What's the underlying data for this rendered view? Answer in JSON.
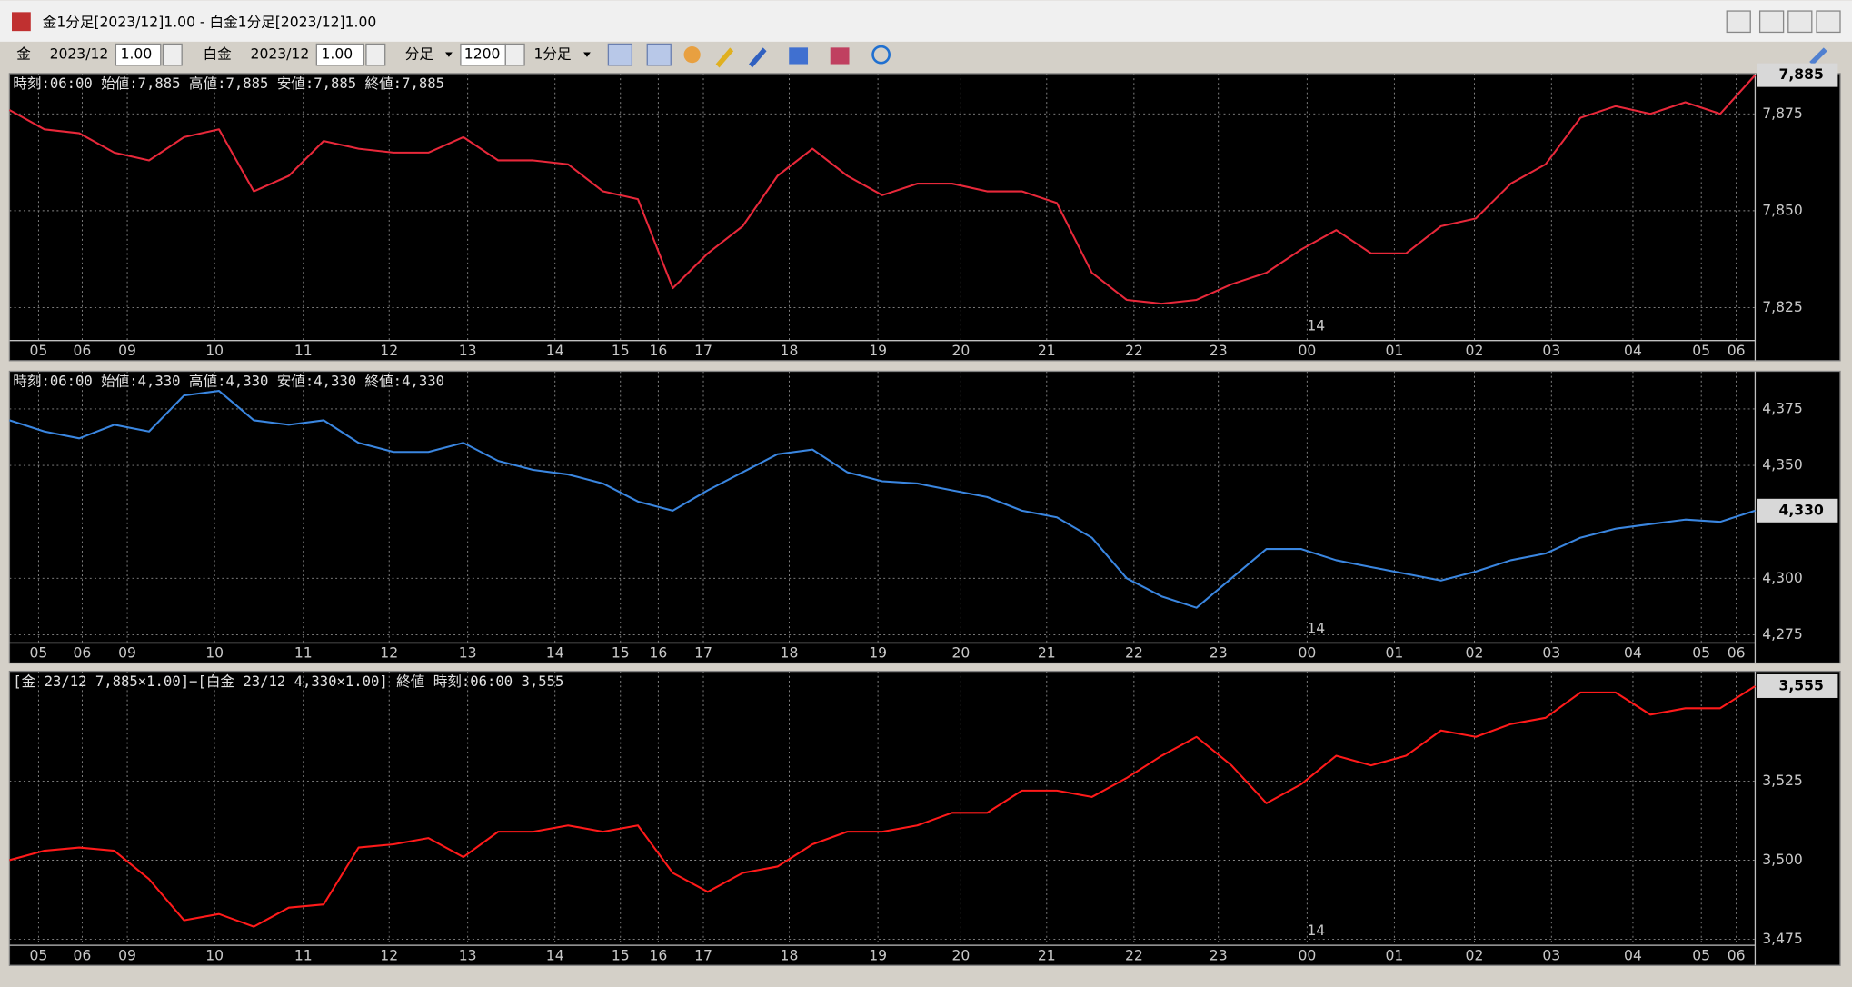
{
  "window": {
    "title": "金1分足[2023/12]1.00 - 白金1分足[2023/12]1.00"
  },
  "toolbar": {
    "item1": "金",
    "month1": "2023/12",
    "mult1": "1.00",
    "item2": "白金",
    "month2": "2023/12",
    "mult2": "1.00",
    "period": "分足",
    "count": "1200",
    "interval": "1分足"
  },
  "chart_data": [
    {
      "type": "line",
      "header": "時刻:06:00 始値:7,885 高値:7,885 安値:7,885 終値:7,885",
      "color": "#e8283a",
      "x": [
        0,
        24,
        48,
        72,
        96,
        120,
        144,
        168,
        192,
        216,
        240,
        264,
        288,
        312,
        336,
        360,
        384,
        408,
        432,
        456,
        480,
        504,
        528,
        552,
        576,
        600,
        624,
        648,
        672,
        696,
        720,
        744,
        768,
        792,
        816,
        840,
        864,
        888,
        912,
        936,
        960,
        984,
        1008,
        1032,
        1056,
        1080,
        1104,
        1128,
        1152,
        1176,
        1200
      ],
      "values": [
        7876,
        7871,
        7870,
        7865,
        7863,
        7869,
        7871,
        7855,
        7859,
        7868,
        7866,
        7865,
        7865,
        7869,
        7863,
        7863,
        7862,
        7855,
        7853,
        7830,
        7839,
        7846,
        7859,
        7866,
        7859,
        7854,
        7857,
        7857,
        7855,
        7855,
        7852,
        7834,
        7827,
        7826,
        7827,
        7831,
        7834,
        7840,
        7845,
        7839,
        7839,
        7846,
        7848,
        7857,
        7862,
        7874,
        7877,
        7875,
        7878,
        7875,
        7885
      ],
      "xlim": [
        0,
        1200
      ],
      "xticks": [
        {
          "value": 20,
          "label": "05"
        },
        {
          "value": 50,
          "label": "06"
        },
        {
          "value": 81,
          "label": "09"
        },
        {
          "value": 141,
          "label": "10"
        },
        {
          "value": 202,
          "label": "11"
        },
        {
          "value": 261,
          "label": "12"
        },
        {
          "value": 315,
          "label": "13"
        },
        {
          "value": 375,
          "label": "14"
        },
        {
          "value": 420,
          "label": "15"
        },
        {
          "value": 446,
          "label": "16"
        },
        {
          "value": 477,
          "label": "17"
        },
        {
          "value": 536,
          "label": "18"
        },
        {
          "value": 597,
          "label": "19"
        },
        {
          "value": 654,
          "label": "20"
        },
        {
          "value": 713,
          "label": "21"
        },
        {
          "value": 773,
          "label": "22"
        },
        {
          "value": 831,
          "label": "23"
        },
        {
          "value": 892,
          "label": "00"
        },
        {
          "value": 952,
          "label": "01"
        },
        {
          "value": 1007,
          "label": "02"
        },
        {
          "value": 1060,
          "label": "03"
        },
        {
          "value": 1116,
          "label": "04"
        },
        {
          "value": 1163,
          "label": "05"
        },
        {
          "value": 1187,
          "label": "06"
        }
      ],
      "ylim": [
        7816.5,
        7885.4
      ],
      "yticks": [
        {
          "value": 7825,
          "label": "7,825"
        },
        {
          "value": 7850,
          "label": "7,850"
        },
        {
          "value": 7875,
          "label": "7,875"
        }
      ],
      "last_value": {
        "value": 7885,
        "label": "7,885"
      },
      "annotations": [
        {
          "x": 892,
          "text": "14"
        }
      ],
      "grid": true
    },
    {
      "type": "line",
      "header": "時刻:06:00 始値:4,330 高値:4,330 安値:4,330 終値:4,330",
      "color": "#3a86e0",
      "x": [
        0,
        24,
        48,
        72,
        96,
        120,
        144,
        168,
        192,
        216,
        240,
        264,
        288,
        312,
        336,
        360,
        384,
        408,
        432,
        456,
        480,
        504,
        528,
        552,
        576,
        600,
        624,
        648,
        672,
        696,
        720,
        744,
        768,
        792,
        816,
        840,
        864,
        888,
        912,
        936,
        960,
        984,
        1008,
        1032,
        1056,
        1080,
        1104,
        1128,
        1152,
        1176,
        1200
      ],
      "values": [
        4370,
        4365,
        4362,
        4368,
        4365,
        4381,
        4383,
        4370,
        4368,
        4370,
        4360,
        4356,
        4356,
        4360,
        4352,
        4348,
        4346,
        4342,
        4334,
        4330,
        4339,
        4347,
        4355,
        4357,
        4347,
        4343,
        4342,
        4339,
        4336,
        4330,
        4327,
        4318,
        4300,
        4292,
        4287,
        4300,
        4313,
        4313,
        4308,
        4305,
        4302,
        4299,
        4303,
        4308,
        4311,
        4318,
        4322,
        4324,
        4326,
        4325,
        4330
      ],
      "xlim": [
        0,
        1200
      ],
      "xticks": [
        {
          "value": 20,
          "label": "05"
        },
        {
          "value": 50,
          "label": "06"
        },
        {
          "value": 81,
          "label": "09"
        },
        {
          "value": 141,
          "label": "10"
        },
        {
          "value": 202,
          "label": "11"
        },
        {
          "value": 261,
          "label": "12"
        },
        {
          "value": 315,
          "label": "13"
        },
        {
          "value": 375,
          "label": "14"
        },
        {
          "value": 420,
          "label": "15"
        },
        {
          "value": 446,
          "label": "16"
        },
        {
          "value": 477,
          "label": "17"
        },
        {
          "value": 536,
          "label": "18"
        },
        {
          "value": 597,
          "label": "19"
        },
        {
          "value": 654,
          "label": "20"
        },
        {
          "value": 713,
          "label": "21"
        },
        {
          "value": 773,
          "label": "22"
        },
        {
          "value": 831,
          "label": "23"
        },
        {
          "value": 892,
          "label": "00"
        },
        {
          "value": 952,
          "label": "01"
        },
        {
          "value": 1007,
          "label": "02"
        },
        {
          "value": 1060,
          "label": "03"
        },
        {
          "value": 1116,
          "label": "04"
        },
        {
          "value": 1163,
          "label": "05"
        },
        {
          "value": 1187,
          "label": "06"
        }
      ],
      "ylim": [
        4271.4,
        4391.7
      ],
      "yticks": [
        {
          "value": 4275,
          "label": "4,275"
        },
        {
          "value": 4300,
          "label": "4,300"
        },
        {
          "value": 4350,
          "label": "4,350"
        },
        {
          "value": 4375,
          "label": "4,375"
        }
      ],
      "last_value": {
        "value": 4330,
        "label": "4,330"
      },
      "annotations": [
        {
          "x": 892,
          "text": "14"
        }
      ],
      "grid": true
    },
    {
      "type": "line",
      "header": "[金 23/12 7,885×1.00]−[白金 23/12 4,330×1.00] 終値 時刻:06:00 3,555",
      "color": "#ff1a1a",
      "x": [
        0,
        24,
        48,
        72,
        96,
        120,
        144,
        168,
        192,
        216,
        240,
        264,
        288,
        312,
        336,
        360,
        384,
        408,
        432,
        456,
        480,
        504,
        528,
        552,
        576,
        600,
        624,
        648,
        672,
        696,
        720,
        744,
        768,
        792,
        816,
        840,
        864,
        888,
        912,
        936,
        960,
        984,
        1008,
        1032,
        1056,
        1080,
        1104,
        1128,
        1152,
        1176,
        1200
      ],
      "values": [
        3500,
        3503,
        3504,
        3503,
        3494,
        3481,
        3483,
        3479,
        3485,
        3486,
        3504,
        3505,
        3507,
        3501,
        3509,
        3509,
        3511,
        3509,
        3511,
        3496,
        3490,
        3496,
        3498,
        3505,
        3509,
        3509,
        3511,
        3515,
        3515,
        3522,
        3522,
        3520,
        3526,
        3533,
        3539,
        3530,
        3518,
        3524,
        3533,
        3530,
        3533,
        3541,
        3539,
        3543,
        3545,
        3553,
        3553,
        3546,
        3548,
        3548,
        3555
      ],
      "xlim": [
        0,
        1200
      ],
      "xticks": [
        {
          "value": 20,
          "label": "05"
        },
        {
          "value": 50,
          "label": "06"
        },
        {
          "value": 81,
          "label": "09"
        },
        {
          "value": 141,
          "label": "10"
        },
        {
          "value": 202,
          "label": "11"
        },
        {
          "value": 261,
          "label": "12"
        },
        {
          "value": 315,
          "label": "13"
        },
        {
          "value": 375,
          "label": "14"
        },
        {
          "value": 420,
          "label": "15"
        },
        {
          "value": 446,
          "label": "16"
        },
        {
          "value": 477,
          "label": "17"
        },
        {
          "value": 536,
          "label": "18"
        },
        {
          "value": 597,
          "label": "19"
        },
        {
          "value": 654,
          "label": "20"
        },
        {
          "value": 713,
          "label": "21"
        },
        {
          "value": 773,
          "label": "22"
        },
        {
          "value": 831,
          "label": "23"
        },
        {
          "value": 892,
          "label": "00"
        },
        {
          "value": 952,
          "label": "01"
        },
        {
          "value": 1007,
          "label": "02"
        },
        {
          "value": 1060,
          "label": "03"
        },
        {
          "value": 1116,
          "label": "04"
        },
        {
          "value": 1163,
          "label": "05"
        },
        {
          "value": 1187,
          "label": "06"
        }
      ],
      "ylim": [
        3473.1,
        3559.7
      ],
      "yticks": [
        {
          "value": 3475,
          "label": "3,475"
        },
        {
          "value": 3500,
          "label": "3,500"
        },
        {
          "value": 3525,
          "label": "3,525"
        }
      ],
      "last_value": {
        "value": 3555,
        "label": "3,555"
      },
      "annotations": [
        {
          "x": 892,
          "text": "14"
        }
      ],
      "grid": true
    }
  ]
}
